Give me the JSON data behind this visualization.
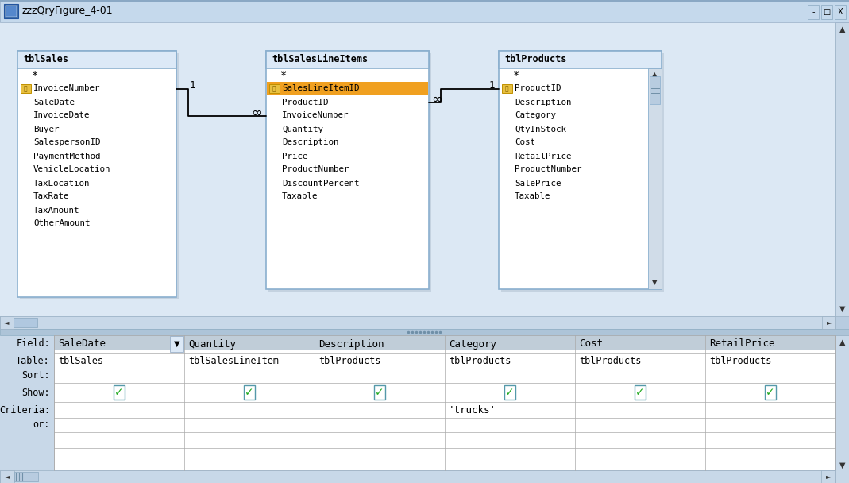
{
  "title": "zzzQryFigure_4-01",
  "title_bar_bg": "#c8d8ec",
  "title_bar_gradient_top": "#dce8f4",
  "title_bar_gradient_bot": "#b0c4da",
  "window_bg": "#dce8f4",
  "diagram_bg": "#dce8f4",
  "grid_bg": "#c8d8ec",
  "table_bg": "#ffffff",
  "table_header_bg": "#dce9f7",
  "table_border_color": "#8aafce",
  "header_highlight_color": "#f0a020",
  "grid_header_bg": "#c0cdd8",
  "grid_white_bg": "#ffffff",
  "grid_line_color": "#aaaaaa",
  "checkbox_color": "#22aa22",
  "checkbox_border": "#6699aa",
  "key_icon_color": "#e8a000",
  "rel_line_color": "#000000",
  "tables": [
    {
      "name": "tblSales",
      "fields": [
        "InvoiceNumber",
        "SaleDate",
        "InvoiceDate",
        "Buyer",
        "SalespersonID",
        "PaymentMethod",
        "VehicleLocation",
        "TaxLocation",
        "TaxRate",
        "TaxAmount",
        "OtherAmount"
      ],
      "key_field": "InvoiceNumber",
      "has_scrollbar": false,
      "orange_row": -1
    },
    {
      "name": "tblSalesLineItems",
      "fields": [
        "SalesLineItemID",
        "ProductID",
        "InvoiceNumber",
        "Quantity",
        "Description",
        "Price",
        "ProductNumber",
        "DiscountPercent",
        "Taxable"
      ],
      "key_field": "SalesLineItemID",
      "has_scrollbar": false,
      "orange_row": 0
    },
    {
      "name": "tblProducts",
      "fields": [
        "ProductID",
        "Description",
        "Category",
        "QtyInStock",
        "Cost",
        "RetailPrice",
        "ProductNumber",
        "SalePrice",
        "Taxable"
      ],
      "key_field": "ProductID",
      "has_scrollbar": true,
      "orange_row": -1
    }
  ],
  "query_grid": {
    "columns": [
      {
        "field": "SaleDate",
        "table": "tblSales",
        "show": true,
        "criteria": "",
        "has_dropdown": true
      },
      {
        "field": "Quantity",
        "table": "tblSalesLineItem",
        "show": true,
        "criteria": "",
        "has_dropdown": false
      },
      {
        "field": "Description",
        "table": "tblProducts",
        "show": true,
        "criteria": "",
        "has_dropdown": false
      },
      {
        "field": "Category",
        "table": "tblProducts",
        "show": true,
        "criteria": "'trucks'",
        "has_dropdown": false
      },
      {
        "field": "Cost",
        "table": "tblProducts",
        "show": true,
        "criteria": "",
        "has_dropdown": false
      },
      {
        "field": "RetailPrice",
        "table": "tblProducts",
        "show": true,
        "criteria": "",
        "has_dropdown": false
      }
    ]
  }
}
